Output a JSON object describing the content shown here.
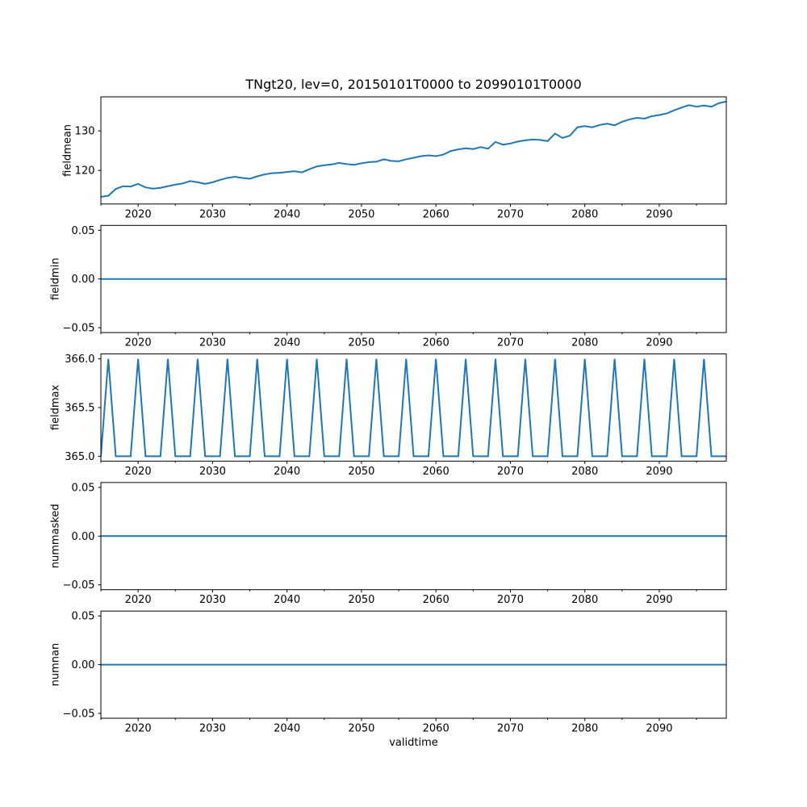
{
  "figure": {
    "title": "TNgt20, lev=0, 20150101T0000 to 20990101T0000",
    "xlabel": "validtime",
    "line_color": "#1f77b4",
    "background_color": "#ffffff",
    "num_subplots": 5
  },
  "chart_data": [
    {
      "type": "line",
      "name": "fieldmean",
      "ylabel": "fieldmean",
      "x": {
        "start": 2015,
        "end": 2099,
        "step": 1
      },
      "values": [
        113.3,
        113.6,
        115.3,
        116.0,
        115.9,
        116.6,
        115.7,
        115.4,
        115.6,
        116.0,
        116.4,
        116.7,
        117.3,
        117.0,
        116.6,
        117.0,
        117.6,
        118.1,
        118.4,
        118.1,
        117.9,
        118.5,
        119.0,
        119.3,
        119.4,
        119.6,
        119.8,
        119.5,
        120.3,
        121.0,
        121.3,
        121.5,
        121.9,
        121.6,
        121.4,
        121.8,
        122.1,
        122.2,
        122.8,
        122.4,
        122.3,
        122.8,
        123.2,
        123.6,
        123.8,
        123.6,
        124.0,
        124.9,
        125.3,
        125.6,
        125.4,
        125.9,
        125.5,
        127.2,
        126.5,
        126.8,
        127.3,
        127.6,
        127.8,
        127.7,
        127.4,
        129.3,
        128.2,
        128.8,
        130.9,
        131.2,
        130.9,
        131.5,
        131.8,
        131.4,
        132.3,
        132.9,
        133.3,
        133.1,
        133.7,
        134.0,
        134.4,
        135.2,
        135.9,
        136.5,
        136.1,
        136.4,
        136.1,
        137.0,
        137.4
      ],
      "xlim": [
        2015,
        2099
      ],
      "ylim": [
        111.5,
        138.6
      ],
      "xticks": [
        2020,
        2030,
        2040,
        2050,
        2060,
        2070,
        2080,
        2090
      ],
      "xtick_minor": [
        2015,
        2025,
        2035,
        2045,
        2055,
        2065,
        2075,
        2085,
        2095
      ],
      "yticks": [
        {
          "value": 120,
          "label": "120"
        },
        {
          "value": 130,
          "label": "130"
        }
      ],
      "grid": false,
      "legend": "none"
    },
    {
      "type": "line",
      "name": "fieldmin",
      "ylabel": "fieldmin",
      "x": {
        "start": 2015,
        "end": 2099,
        "step": 1
      },
      "constant_value": 0.0,
      "xlim": [
        2015,
        2099
      ],
      "ylim": [
        -0.055,
        0.055
      ],
      "xticks": [
        2020,
        2030,
        2040,
        2050,
        2060,
        2070,
        2080,
        2090
      ],
      "xtick_minor": [
        2015,
        2025,
        2035,
        2045,
        2055,
        2065,
        2075,
        2085,
        2095
      ],
      "yticks": [
        {
          "value": 0.05,
          "label": "0.05"
        },
        {
          "value": 0.0,
          "label": "0.00"
        },
        {
          "value": -0.05,
          "label": "−0.05"
        }
      ],
      "grid": false,
      "legend": "none"
    },
    {
      "type": "line",
      "name": "fieldmax",
      "ylabel": "fieldmax",
      "x": {
        "start": 2015,
        "end": 2099,
        "step": 1
      },
      "values": [
        365,
        366,
        365,
        365,
        365,
        366,
        365,
        365,
        365,
        366,
        365,
        365,
        365,
        366,
        365,
        365,
        365,
        366,
        365,
        365,
        365,
        366,
        365,
        365,
        365,
        366,
        365,
        365,
        365,
        366,
        365,
        365,
        365,
        366,
        365,
        365,
        365,
        366,
        365,
        365,
        365,
        366,
        365,
        365,
        365,
        366,
        365,
        365,
        365,
        366,
        365,
        365,
        365,
        366,
        365,
        365,
        365,
        366,
        365,
        365,
        365,
        366,
        365,
        365,
        365,
        366,
        365,
        365,
        365,
        366,
        365,
        365,
        365,
        366,
        365,
        365,
        365,
        366,
        365,
        365,
        365,
        366,
        365,
        365,
        365
      ],
      "xlim": [
        2015,
        2099
      ],
      "ylim": [
        364.95,
        366.05
      ],
      "xticks": [
        2020,
        2030,
        2040,
        2050,
        2060,
        2070,
        2080,
        2090
      ],
      "xtick_minor": [
        2015,
        2025,
        2035,
        2045,
        2055,
        2065,
        2075,
        2085,
        2095
      ],
      "yticks": [
        {
          "value": 365.0,
          "label": "365.0"
        },
        {
          "value": 365.5,
          "label": "365.5"
        },
        {
          "value": 366.0,
          "label": "366.0"
        }
      ],
      "grid": false,
      "legend": "none"
    },
    {
      "type": "line",
      "name": "nummasked",
      "ylabel": "nummasked",
      "x": {
        "start": 2015,
        "end": 2099,
        "step": 1
      },
      "constant_value": 0.0,
      "xlim": [
        2015,
        2099
      ],
      "ylim": [
        -0.055,
        0.055
      ],
      "xticks": [
        2020,
        2030,
        2040,
        2050,
        2060,
        2070,
        2080,
        2090
      ],
      "xtick_minor": [
        2015,
        2025,
        2035,
        2045,
        2055,
        2065,
        2075,
        2085,
        2095
      ],
      "yticks": [
        {
          "value": 0.05,
          "label": "0.05"
        },
        {
          "value": 0.0,
          "label": "0.00"
        },
        {
          "value": -0.05,
          "label": "−0.05"
        }
      ],
      "grid": false,
      "legend": "none"
    },
    {
      "type": "line",
      "name": "numnan",
      "ylabel": "numnan",
      "x": {
        "start": 2015,
        "end": 2099,
        "step": 1
      },
      "constant_value": 0.0,
      "xlim": [
        2015,
        2099
      ],
      "ylim": [
        -0.055,
        0.055
      ],
      "xticks": [
        2020,
        2030,
        2040,
        2050,
        2060,
        2070,
        2080,
        2090
      ],
      "xtick_minor": [
        2015,
        2025,
        2035,
        2045,
        2055,
        2065,
        2075,
        2085,
        2095
      ],
      "yticks": [
        {
          "value": 0.05,
          "label": "0.05"
        },
        {
          "value": 0.0,
          "label": "0.00"
        },
        {
          "value": -0.05,
          "label": "−0.05"
        }
      ],
      "grid": false,
      "legend": "none"
    }
  ]
}
